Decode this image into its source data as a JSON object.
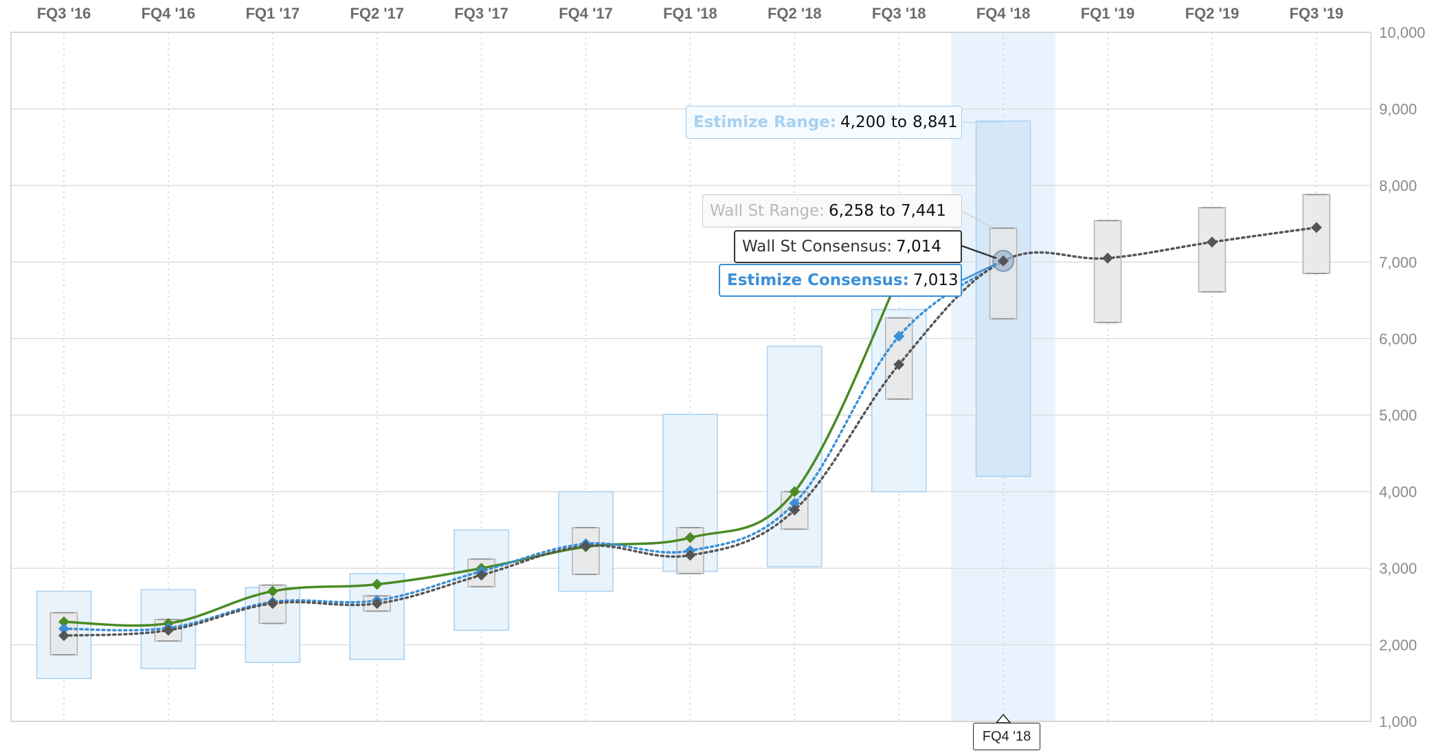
{
  "chart_data": {
    "type": "line",
    "categories": [
      "FQ3 '16",
      "FQ4 '16",
      "FQ1 '17",
      "FQ2 '17",
      "FQ3 '17",
      "FQ4 '17",
      "FQ1 '18",
      "FQ2 '18",
      "FQ3 '18",
      "FQ4 '18",
      "FQ1 '19",
      "FQ2 '19",
      "FQ3 '19"
    ],
    "ylim": [
      1000,
      10000
    ],
    "yticks": [
      1000,
      2000,
      3000,
      4000,
      5000,
      6000,
      7000,
      8000,
      9000,
      10000
    ],
    "ytick_labels": [
      "1,000",
      "2,000",
      "3,000",
      "4,000",
      "5,000",
      "6,000",
      "7,000",
      "8,000",
      "9,000",
      "10,000"
    ],
    "grid": true,
    "highlighted_category": "FQ4 '18",
    "series": [
      {
        "kind": "actual",
        "values": [
          2300,
          2280,
          2700,
          2790,
          3000,
          3280,
          3400,
          4000,
          6800,
          null,
          null,
          null,
          null
        ]
      },
      {
        "kind": "estimize_consensus",
        "values": [
          2210,
          2220,
          2560,
          2580,
          2960,
          3320,
          3230,
          3850,
          6030,
          7013,
          null,
          null,
          null
        ]
      },
      {
        "kind": "wall_st_consensus",
        "values": [
          2120,
          2190,
          2540,
          2540,
          2910,
          3290,
          3170,
          3760,
          5660,
          7014,
          7050,
          7260,
          7450
        ]
      }
    ],
    "estimize_range": [
      [
        1560,
        2700
      ],
      [
        1690,
        2720
      ],
      [
        1770,
        2750
      ],
      [
        1810,
        2930
      ],
      [
        2190,
        3500
      ],
      [
        2700,
        4000
      ],
      [
        2960,
        5010
      ],
      [
        3020,
        5900
      ],
      [
        4000,
        6380
      ],
      [
        4200,
        8841
      ],
      null,
      null,
      null
    ],
    "wall_st_range": [
      [
        1870,
        2420
      ],
      [
        2050,
        2330
      ],
      [
        2280,
        2780
      ],
      [
        2440,
        2640
      ],
      [
        2760,
        3120
      ],
      [
        2920,
        3530
      ],
      [
        2930,
        3530
      ],
      [
        3510,
        4000
      ],
      [
        5210,
        6270
      ],
      [
        6258,
        7441
      ],
      [
        6210,
        7540
      ],
      [
        6610,
        7710
      ],
      [
        6850,
        7880
      ]
    ],
    "colors": {
      "actual": "#4a8a23",
      "estimize_consensus": "#3b8fd6",
      "wall_st_consensus": "#555555",
      "estimize_range_fill": "#e8f3fc",
      "estimize_range_stroke": "#a8d0f0",
      "wall_st_range_fill": "#e6e6e6",
      "wall_st_range_stroke": "#b0b0b0",
      "highlight_band": "#e9f3fd",
      "grid": "#dddddd"
    }
  },
  "tooltips": {
    "estimize_range": {
      "label": "Estimize Range:",
      "low": "4,200",
      "sep": "to",
      "high": "8,841"
    },
    "wall_st_range": {
      "label": "Wall St Range:",
      "low": "6,258",
      "sep": "to",
      "high": "7,441"
    },
    "wall_st_consensus": {
      "label": "Wall St Consensus:",
      "value": "7,014"
    },
    "estimize_consensus": {
      "label": "Estimize Consensus:",
      "value": "7,013"
    }
  },
  "x_flag": "FQ4 '18"
}
